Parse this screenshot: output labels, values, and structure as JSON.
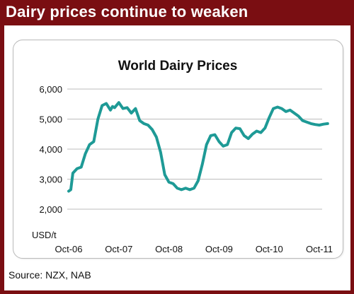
{
  "header": {
    "title": "Dairy prices continue to weaken"
  },
  "source_text": "Source: NZX, NAB",
  "colors": {
    "frame": "#7a0e12",
    "line": "#1e9a96",
    "grid": "#bcbcbc"
  },
  "chart_data": {
    "type": "line",
    "title": "World Dairy Prices",
    "ylabel": "USD/t",
    "xlabel": "",
    "ylim": [
      2000,
      6000
    ],
    "yticks": [
      "6,000",
      "5,000",
      "4,000",
      "3,000",
      "2,000"
    ],
    "xticks": [
      "Oct-06",
      "Oct-07",
      "Oct-08",
      "Oct-09",
      "Oct-10",
      "Oct-11"
    ],
    "grid": true,
    "series": [
      {
        "x": [
          0,
          0.5,
          1,
          2,
          3,
          4,
          5,
          6,
          7,
          8,
          9,
          10,
          10.5,
          11,
          12,
          13,
          14,
          15,
          16,
          17,
          18,
          19,
          20,
          21,
          22,
          23,
          24,
          25,
          26,
          27,
          28,
          29,
          30,
          31,
          32,
          33,
          34,
          35,
          36,
          37,
          38,
          39,
          40,
          41,
          42,
          43,
          44,
          45,
          46,
          47,
          48,
          49,
          50,
          51,
          52,
          53,
          54,
          55,
          56,
          57,
          58,
          59,
          60,
          61,
          62
        ],
        "values": [
          2600,
          2650,
          3200,
          3350,
          3400,
          3850,
          4150,
          4250,
          5000,
          5450,
          5520,
          5300,
          5420,
          5380,
          5550,
          5350,
          5380,
          5200,
          5350,
          4950,
          4850,
          4800,
          4650,
          4400,
          3900,
          3150,
          2900,
          2850,
          2700,
          2650,
          2700,
          2650,
          2700,
          2950,
          3500,
          4150,
          4450,
          4480,
          4250,
          4100,
          4150,
          4550,
          4700,
          4680,
          4450,
          4350,
          4500,
          4600,
          4550,
          4700,
          5050,
          5350,
          5400,
          5350,
          5250,
          5300,
          5200,
          5100,
          4950,
          4900,
          4850,
          4820,
          4800,
          4830,
          4850
        ]
      }
    ]
  }
}
